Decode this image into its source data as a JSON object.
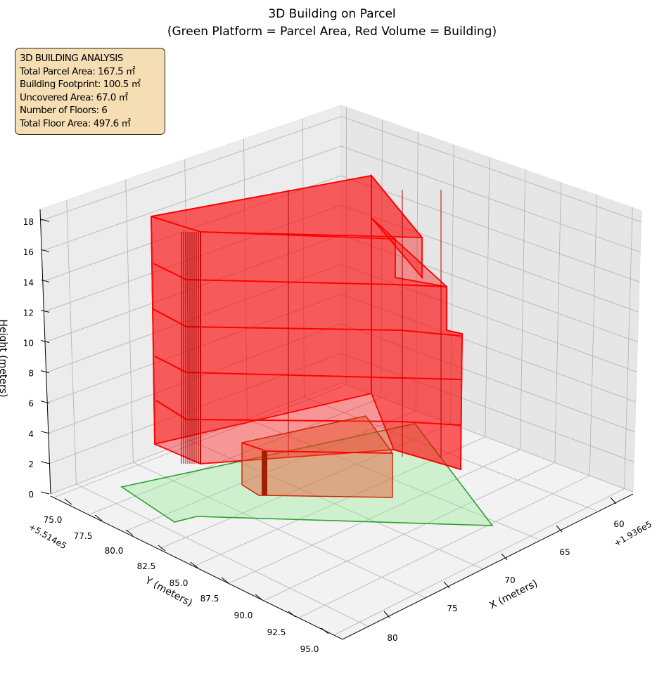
{
  "chart_data": {
    "type": "3d-polygon",
    "title": "3D Building on Parcel",
    "subtitle": "(Green Platform = Parcel Area, Red Volume = Building)",
    "xlabel": "X (meters)",
    "ylabel": "Y (meters)",
    "zlabel": "Height (meters)",
    "x_offset": "+1.936e5",
    "y_offset": "+5.514e5",
    "x_ticks": [
      "60",
      "65",
      "70",
      "75",
      "80"
    ],
    "y_ticks": [
      "75.0",
      "77.5",
      "80.0",
      "82.5",
      "85.0",
      "87.5",
      "90.0",
      "92.5",
      "95.0"
    ],
    "z_ticks": [
      "0",
      "2",
      "4",
      "6",
      "8",
      "10",
      "12",
      "14",
      "16",
      "18"
    ],
    "zlim": [
      0,
      18
    ],
    "grid": true,
    "parcel_color": "#2ca02c",
    "building_color": "#ff0000",
    "floors": 6
  },
  "info": {
    "title": "3D BUILDING ANALYSIS",
    "lines": [
      "Total Parcel Area: 167.5 ㎡",
      "Building Footprint: 100.5 ㎡",
      "Uncovered Area: 67.0 ㎡",
      "Number of Floors: 6",
      "Total Floor Area: 497.6 ㎡"
    ]
  }
}
